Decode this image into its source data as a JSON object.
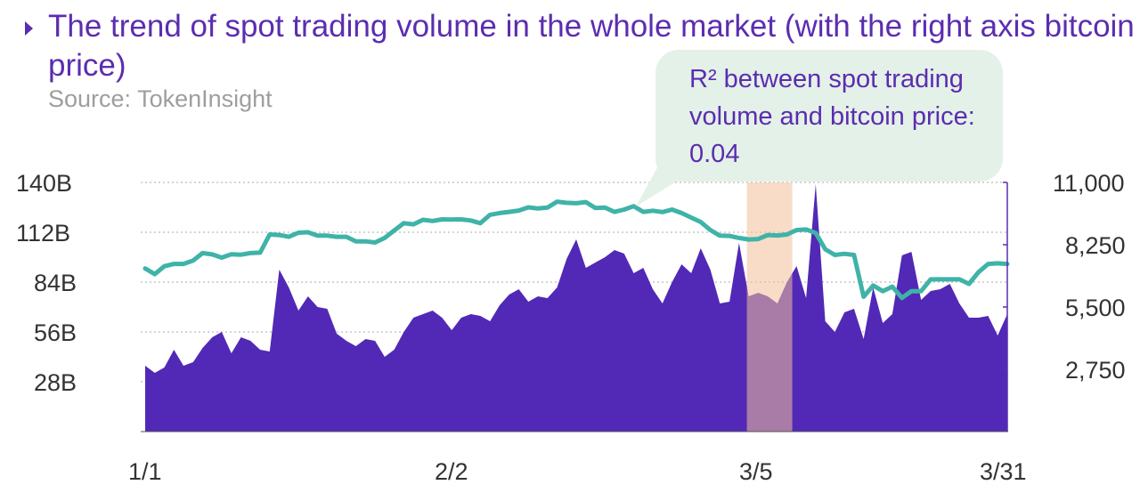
{
  "title": "The trend of spot trading volume in the whole market (with the right axis bitcoin price)",
  "source": "Source: TokenInsight",
  "callout": {
    "text": "R² between spot trading volume and bitcoin price: 0.04"
  },
  "colors": {
    "accent": "#5b2db0",
    "area": "#5129b6",
    "line": "#3fb3a8",
    "highlight": "#f2c09a"
  },
  "chart_data": {
    "type": "area",
    "title": "The trend of spot trading volume in the whole market (with the right axis bitcoin price)",
    "x_ticks": [
      "1/1",
      "2/2",
      "3/5",
      "3/31"
    ],
    "y_left": {
      "ticks": [
        "28B",
        "56B",
        "84B",
        "112B",
        "140B"
      ],
      "range": [
        0,
        140
      ],
      "unit": "B"
    },
    "y_right": {
      "ticks": [
        "2,750",
        "5,500",
        "8,250",
        "11,000"
      ],
      "range": [
        0,
        11000
      ]
    },
    "highlight_range_index": [
      63,
      67
    ],
    "series": [
      {
        "name": "Spot trading volume",
        "axis": "left",
        "kind": "area",
        "values": [
          37,
          33,
          36,
          46,
          37,
          39,
          47,
          53,
          56,
          44,
          53,
          51,
          46,
          45,
          91,
          81,
          68,
          76,
          70,
          69,
          55,
          51,
          48,
          52,
          51,
          42,
          46,
          56,
          64,
          66,
          68,
          64,
          57,
          64,
          66,
          65,
          62,
          71,
          77,
          80,
          73,
          76,
          75,
          81,
          97,
          108,
          92,
          95,
          98,
          102,
          100,
          89,
          92,
          80,
          72,
          84,
          94,
          89,
          103,
          91,
          72,
          73,
          106,
          76,
          78,
          76,
          72,
          84,
          93,
          75,
          139,
          62,
          56,
          67,
          69,
          52,
          81,
          61,
          66,
          99,
          101,
          74,
          79,
          80,
          83,
          72,
          64,
          64,
          65,
          54,
          66
        ]
      },
      {
        "name": "Bitcoin price",
        "axis": "right",
        "kind": "line",
        "values": [
          7200,
          6950,
          7300,
          7400,
          7400,
          7550,
          7880,
          7820,
          7680,
          7830,
          7810,
          7880,
          7900,
          8700,
          8680,
          8600,
          8780,
          8800,
          8650,
          8650,
          8600,
          8600,
          8400,
          8400,
          8350,
          8550,
          8880,
          9200,
          9150,
          9350,
          9300,
          9370,
          9360,
          9370,
          9320,
          9200,
          9570,
          9650,
          9700,
          9760,
          9900,
          9850,
          9890,
          10150,
          10100,
          10080,
          10130,
          9870,
          9890,
          9700,
          9800,
          9950,
          9700,
          9750,
          9690,
          9800,
          9650,
          9450,
          9250,
          8900,
          8650,
          8640,
          8550,
          8480,
          8500,
          8680,
          8660,
          8700,
          8900,
          8920,
          8770,
          8050,
          7800,
          7850,
          7800,
          5950,
          6450,
          6200,
          6400,
          5900,
          6200,
          6200,
          6720,
          6720,
          6720,
          6720,
          6520,
          7040,
          7400,
          7430,
          7400
        ]
      }
    ]
  }
}
